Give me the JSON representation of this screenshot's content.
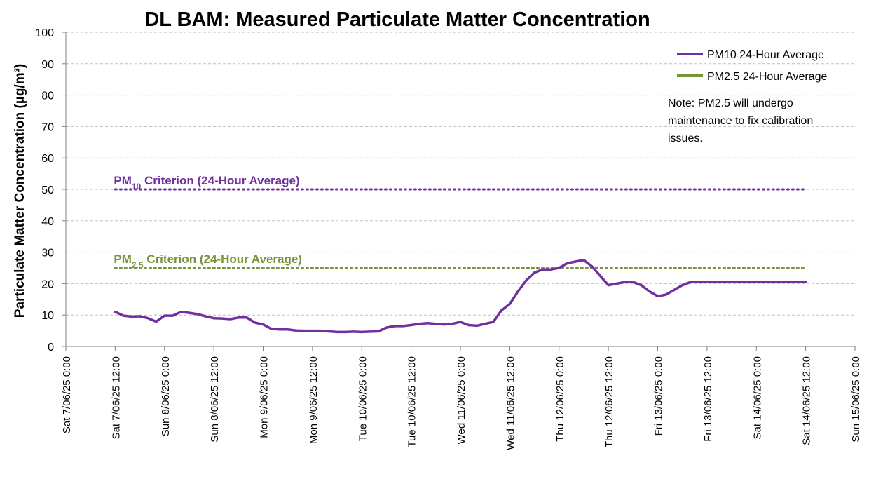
{
  "colors": {
    "pm10": "#7030A0",
    "pm25": "#77933C",
    "grid": "#BFBFBF",
    "axis": "#808080",
    "text": "#000000"
  },
  "chart_data": {
    "type": "line",
    "title": "DL BAM: Measured Particulate Matter Concentration",
    "ylabel": "Particulate Matter Concentration (µg/m³)",
    "xlabel": "",
    "ylim": [
      0,
      100
    ],
    "yticks": [
      0,
      10,
      20,
      30,
      40,
      50,
      60,
      70,
      80,
      90,
      100
    ],
    "xlim": [
      "2025-06-07T00:00",
      "2025-06-15T00:00"
    ],
    "xtick_labels": [
      "Sat 7/06/25 0:00",
      "Sat 7/06/25 12:00",
      "Sun 8/06/25 0:00",
      "Sun 8/06/25 12:00",
      "Mon 9/06/25 0:00",
      "Mon 9/06/25 12:00",
      "Tue 10/06/25 0:00",
      "Tue 10/06/25 12:00",
      "Wed 11/06/25 0:00",
      "Wed 11/06/25 12:00",
      "Thu 12/06/25 0:00",
      "Thu 12/06/25 12:00",
      "Fri 13/06/25 0:00",
      "Fri 13/06/25 12:00",
      "Sat 14/06/25 0:00",
      "Sat 14/06/25 12:00",
      "Sun 15/06/25 0:00"
    ],
    "grid": true,
    "legend_position": "top-right",
    "series": [
      {
        "name": "PM10 24-Hour Average",
        "color": "#7030A0",
        "style": "solid",
        "x": [
          "2025-06-07T12:00",
          "2025-06-07T14:00",
          "2025-06-07T16:00",
          "2025-06-07T18:00",
          "2025-06-07T20:00",
          "2025-06-07T22:00",
          "2025-06-08T00:00",
          "2025-06-08T02:00",
          "2025-06-08T04:00",
          "2025-06-08T06:00",
          "2025-06-08T08:00",
          "2025-06-08T10:00",
          "2025-06-08T12:00",
          "2025-06-08T14:00",
          "2025-06-08T16:00",
          "2025-06-08T18:00",
          "2025-06-08T20:00",
          "2025-06-08T22:00",
          "2025-06-09T00:00",
          "2025-06-09T02:00",
          "2025-06-09T04:00",
          "2025-06-09T06:00",
          "2025-06-09T08:00",
          "2025-06-09T10:00",
          "2025-06-09T12:00",
          "2025-06-09T14:00",
          "2025-06-09T16:00",
          "2025-06-09T18:00",
          "2025-06-09T20:00",
          "2025-06-09T22:00",
          "2025-06-10T00:00",
          "2025-06-10T02:00",
          "2025-06-10T04:00",
          "2025-06-10T06:00",
          "2025-06-10T08:00",
          "2025-06-10T10:00",
          "2025-06-10T12:00",
          "2025-06-10T14:00",
          "2025-06-10T16:00",
          "2025-06-10T18:00",
          "2025-06-10T20:00",
          "2025-06-10T22:00",
          "2025-06-11T00:00",
          "2025-06-11T02:00",
          "2025-06-11T04:00",
          "2025-06-11T06:00",
          "2025-06-11T08:00",
          "2025-06-11T10:00",
          "2025-06-11T12:00",
          "2025-06-11T14:00",
          "2025-06-11T16:00",
          "2025-06-11T18:00",
          "2025-06-11T20:00",
          "2025-06-11T22:00",
          "2025-06-12T00:00",
          "2025-06-12T02:00",
          "2025-06-12T04:00",
          "2025-06-12T06:00",
          "2025-06-12T08:00",
          "2025-06-12T10:00",
          "2025-06-12T12:00",
          "2025-06-12T14:00",
          "2025-06-12T16:00",
          "2025-06-12T18:00",
          "2025-06-12T20:00",
          "2025-06-12T22:00",
          "2025-06-13T00:00",
          "2025-06-13T02:00",
          "2025-06-13T04:00",
          "2025-06-13T06:00",
          "2025-06-13T08:00",
          "2025-06-13T10:00",
          "2025-06-13T12:00",
          "2025-06-13T14:00",
          "2025-06-13T16:00",
          "2025-06-13T18:00",
          "2025-06-13T20:00",
          "2025-06-13T22:00",
          "2025-06-14T00:00",
          "2025-06-14T02:00",
          "2025-06-14T04:00",
          "2025-06-14T06:00",
          "2025-06-14T08:00",
          "2025-06-14T10:00",
          "2025-06-14T12:00"
        ],
        "values": [
          11.0,
          9.8,
          9.5,
          9.6,
          9.0,
          7.9,
          9.8,
          9.8,
          11.0,
          10.7,
          10.3,
          9.6,
          9.0,
          8.9,
          8.7,
          9.2,
          9.2,
          7.6,
          7.0,
          5.6,
          5.4,
          5.4,
          5.1,
          5.0,
          5.0,
          5.0,
          4.8,
          4.6,
          4.6,
          4.7,
          4.6,
          4.7,
          4.8,
          6.0,
          6.5,
          6.5,
          6.8,
          7.2,
          7.4,
          7.2,
          7.0,
          7.2,
          7.8,
          6.8,
          6.6,
          7.2,
          7.8,
          11.5,
          13.5,
          17.5,
          21.0,
          23.5,
          24.5,
          24.5,
          25.0,
          26.5,
          27.0,
          27.5,
          25.5,
          22.5,
          19.5,
          20.0,
          20.5,
          20.5,
          19.5,
          17.5,
          16.0,
          16.5,
          18.0,
          19.5,
          20.5,
          20.5,
          20.5,
          20.5,
          20.5,
          20.5,
          20.5,
          20.5,
          20.5,
          20.5,
          20.5,
          20.5,
          20.5,
          20.5,
          20.5
        ]
      },
      {
        "name": "PM2.5 24-Hour Average",
        "color": "#77933C",
        "style": "solid",
        "x": [],
        "values": []
      }
    ],
    "reference_lines": [
      {
        "label_main": "PM",
        "label_sub": "10",
        "label_rest": " Criterion (24-Hour Average)",
        "value": 50,
        "x_start": "2025-06-07T12:00",
        "x_end": "2025-06-14T12:00",
        "color": "#7030A0",
        "style": "dotted"
      },
      {
        "label_main": "PM",
        "label_sub": "2.5",
        "label_rest": " Criterion (24-Hour Average)",
        "value": 25,
        "x_start": "2025-06-07T12:00",
        "x_end": "2025-06-14T12:00",
        "color": "#77933C",
        "style": "dotted"
      }
    ],
    "annotations": {
      "note_lines": [
        "Note: PM2.5 will undergo",
        "maintenance to fix calibration",
        "issues."
      ]
    }
  }
}
